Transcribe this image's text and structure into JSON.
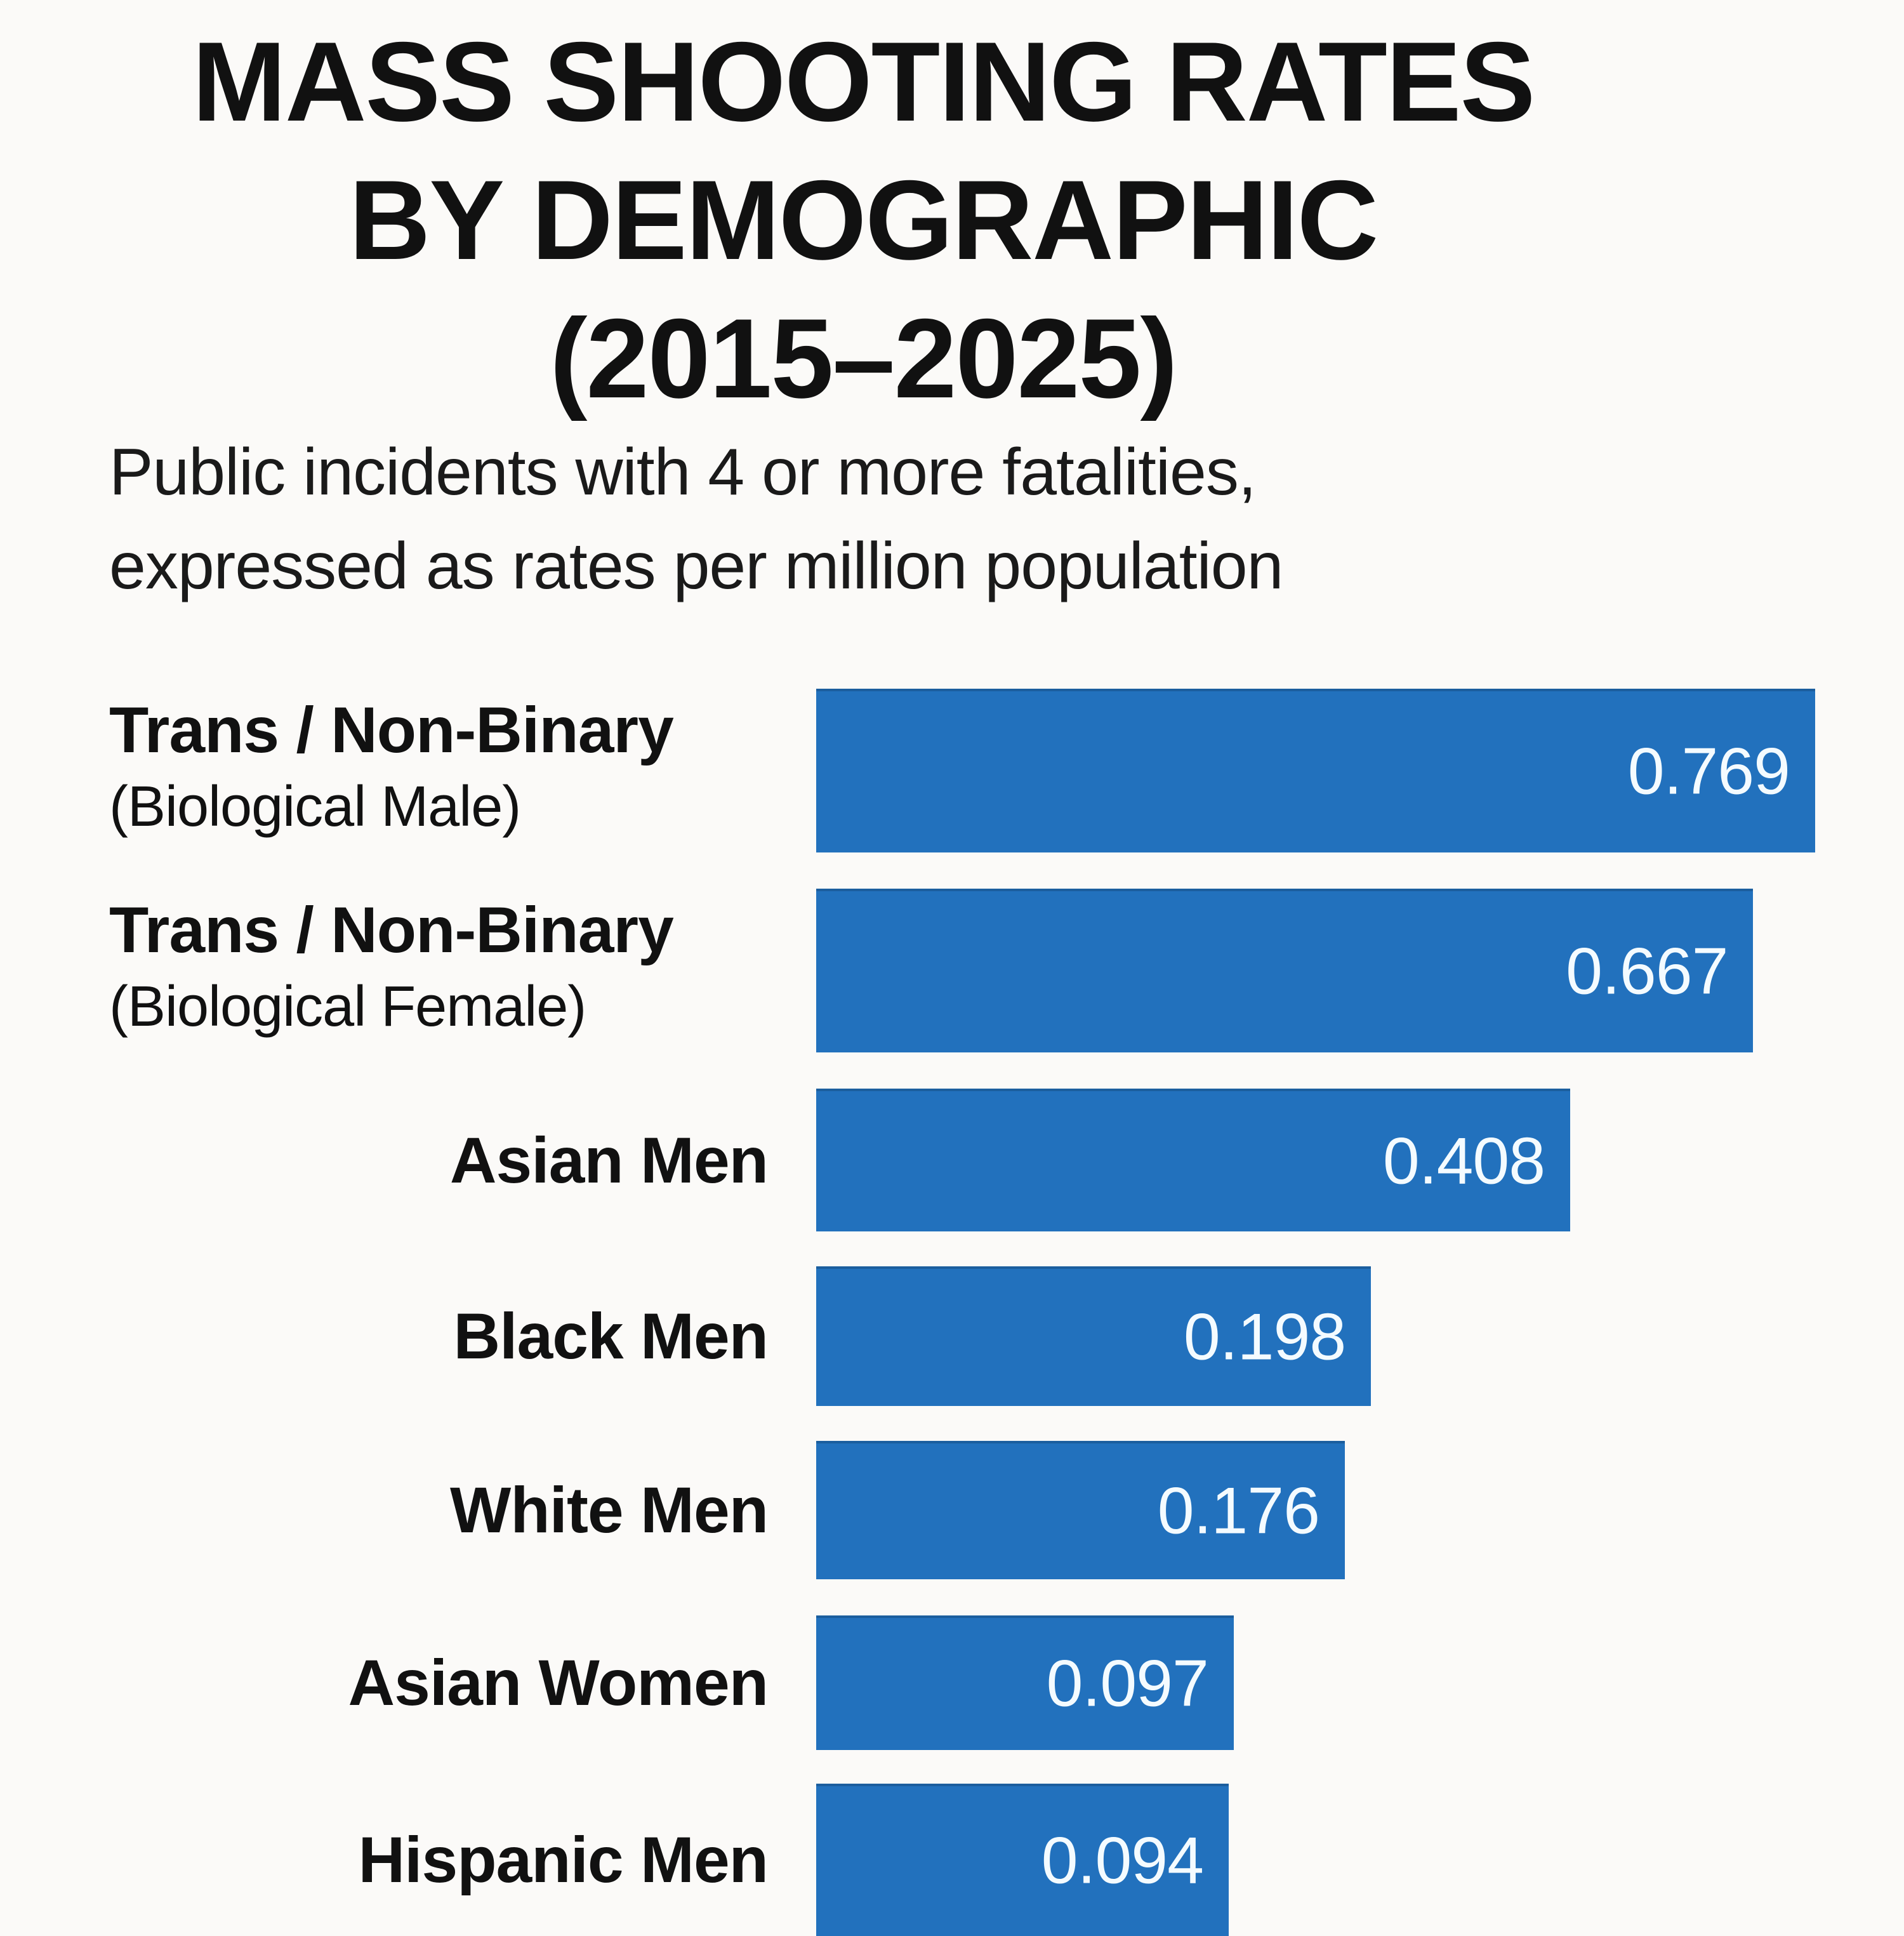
{
  "chart_data": {
    "type": "bar",
    "orientation": "horizontal",
    "title": [
      "MASS SHOOTING RATES",
      "BY DEMOGRAPHIC",
      "(2015–2025)"
    ],
    "subtitle": [
      "Public incidents with 4 or more fatalities,",
      "expressed as rates per million population"
    ],
    "xlabel": "",
    "ylabel": "",
    "grid": false,
    "legend": "none",
    "bar_color": "#2271bd",
    "value_label_color": "#f4fbff",
    "categories": [
      {
        "label": "Trans / Non-Binary",
        "sublabel": "(Biological Male)"
      },
      {
        "label": "Trans / Non-Binary",
        "sublabel": "(Biological Female)"
      },
      {
        "label": "Asian Men",
        "sublabel": ""
      },
      {
        "label": "Black Men",
        "sublabel": ""
      },
      {
        "label": "White Men",
        "sublabel": ""
      },
      {
        "label": "Asian Women",
        "sublabel": ""
      },
      {
        "label": "Hispanic Men",
        "sublabel": ""
      }
    ],
    "values": [
      0.769,
      0.667,
      0.408,
      0.198,
      0.176,
      0.097,
      0.094
    ],
    "value_labels": [
      "0.769",
      "0.667",
      "0.408",
      "0.198",
      "0.176",
      "0.097",
      "0.094"
    ]
  }
}
